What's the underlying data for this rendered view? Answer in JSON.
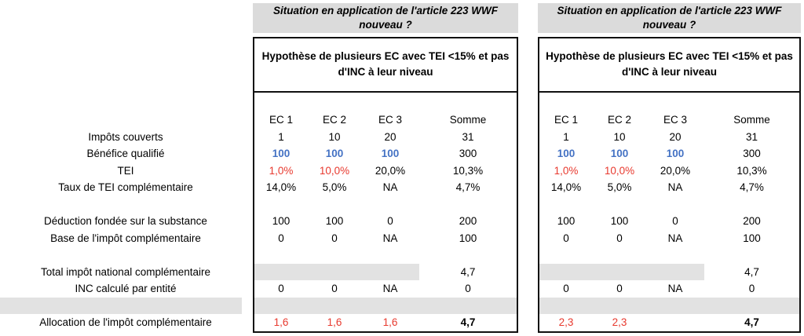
{
  "colors": {
    "band": "#e2e2e2",
    "header_band": "#dbdbdb",
    "red": "#e8392e",
    "blue": "#4472c4",
    "border": "#111111"
  },
  "situation_header": "Situation en application de l'article 223 WWF nouveau ?",
  "hypothesis": "Hypothèse de plusieurs EC avec TEI <15% et pas d'INC à leur niveau",
  "columns": [
    "EC 1",
    "EC 2",
    "EC 3",
    "Somme"
  ],
  "row_labels": [
    {
      "text": "",
      "gray": false
    },
    {
      "text": "Impôts couverts",
      "gray": false
    },
    {
      "text": "Bénéfice qualifié",
      "gray": false
    },
    {
      "text": "TEI",
      "gray": false
    },
    {
      "text": "Taux de TEI complémentaire",
      "gray": false
    },
    {
      "text": "",
      "gray": false
    },
    {
      "text": "Déduction fondée sur la substance",
      "gray": false
    },
    {
      "text": "Base de l'impôt complémentaire",
      "gray": false
    },
    {
      "text": "",
      "gray": false
    },
    {
      "text": "Total impôt national complémentaire",
      "gray": false
    },
    {
      "text": "INC calculé par entité",
      "gray": false
    },
    {
      "text": "",
      "gray": true
    },
    {
      "text": "Allocation de l'impôt complémentaire",
      "gray": false
    }
  ],
  "tables": [
    {
      "name": "left",
      "rows": [
        {
          "kind": "colheader"
        },
        {
          "kind": "data",
          "cells": [
            {
              "v": "1"
            },
            {
              "v": "10"
            },
            {
              "v": "20"
            },
            {
              "v": "31"
            }
          ]
        },
        {
          "kind": "data",
          "cells": [
            {
              "v": "100",
              "s": "blue"
            },
            {
              "v": "100",
              "s": "blue"
            },
            {
              "v": "100",
              "s": "blue"
            },
            {
              "v": "300"
            }
          ]
        },
        {
          "kind": "data",
          "cells": [
            {
              "v": "1,0%",
              "s": "red"
            },
            {
              "v": "10,0%",
              "s": "red"
            },
            {
              "v": "20,0%"
            },
            {
              "v": "10,3%"
            }
          ]
        },
        {
          "kind": "data",
          "cells": [
            {
              "v": "14,0%"
            },
            {
              "v": "5,0%"
            },
            {
              "v": "NA"
            },
            {
              "v": "4,7%"
            }
          ]
        },
        {
          "kind": "blank"
        },
        {
          "kind": "data",
          "cells": [
            {
              "v": "100"
            },
            {
              "v": "100"
            },
            {
              "v": "0"
            },
            {
              "v": "200"
            }
          ]
        },
        {
          "kind": "data",
          "cells": [
            {
              "v": "0"
            },
            {
              "v": "0"
            },
            {
              "v": "NA"
            },
            {
              "v": "100"
            }
          ]
        },
        {
          "kind": "blank"
        },
        {
          "kind": "data",
          "grayec": true,
          "cells": [
            {
              "v": ""
            },
            {
              "v": ""
            },
            {
              "v": ""
            },
            {
              "v": "4,7"
            }
          ]
        },
        {
          "kind": "data",
          "cells": [
            {
              "v": "0"
            },
            {
              "v": "0"
            },
            {
              "v": "NA"
            },
            {
              "v": "0"
            }
          ]
        },
        {
          "kind": "grayband"
        },
        {
          "kind": "data",
          "cells": [
            {
              "v": "1,6",
              "s": "red"
            },
            {
              "v": "1,6",
              "s": "red"
            },
            {
              "v": "1,6",
              "s": "red"
            },
            {
              "v": "4,7",
              "s": "bold"
            }
          ]
        }
      ]
    },
    {
      "name": "right",
      "rows": [
        {
          "kind": "colheader"
        },
        {
          "kind": "data",
          "cells": [
            {
              "v": "1"
            },
            {
              "v": "10"
            },
            {
              "v": "20"
            },
            {
              "v": "31"
            }
          ]
        },
        {
          "kind": "data",
          "cells": [
            {
              "v": "100",
              "s": "blue"
            },
            {
              "v": "100",
              "s": "blue"
            },
            {
              "v": "100",
              "s": "blue"
            },
            {
              "v": "300"
            }
          ]
        },
        {
          "kind": "data",
          "cells": [
            {
              "v": "1,0%",
              "s": "red"
            },
            {
              "v": "10,0%",
              "s": "red"
            },
            {
              "v": "20,0%"
            },
            {
              "v": "10,3%"
            }
          ]
        },
        {
          "kind": "data",
          "cells": [
            {
              "v": "14,0%"
            },
            {
              "v": "5,0%"
            },
            {
              "v": "NA"
            },
            {
              "v": "4,7%"
            }
          ]
        },
        {
          "kind": "blank"
        },
        {
          "kind": "data",
          "cells": [
            {
              "v": "100"
            },
            {
              "v": "100"
            },
            {
              "v": "0"
            },
            {
              "v": "200"
            }
          ]
        },
        {
          "kind": "data",
          "cells": [
            {
              "v": "0"
            },
            {
              "v": "0"
            },
            {
              "v": "NA"
            },
            {
              "v": "100"
            }
          ]
        },
        {
          "kind": "blank"
        },
        {
          "kind": "data",
          "grayec": true,
          "cells": [
            {
              "v": ""
            },
            {
              "v": ""
            },
            {
              "v": ""
            },
            {
              "v": "4,7"
            }
          ]
        },
        {
          "kind": "data",
          "cells": [
            {
              "v": "0"
            },
            {
              "v": "0"
            },
            {
              "v": "NA"
            },
            {
              "v": "0"
            }
          ]
        },
        {
          "kind": "grayband"
        },
        {
          "kind": "data",
          "cells": [
            {
              "v": "2,3",
              "s": "red"
            },
            {
              "v": "2,3",
              "s": "red"
            },
            {
              "v": ""
            },
            {
              "v": "4,7",
              "s": "bold"
            }
          ]
        }
      ]
    }
  ]
}
